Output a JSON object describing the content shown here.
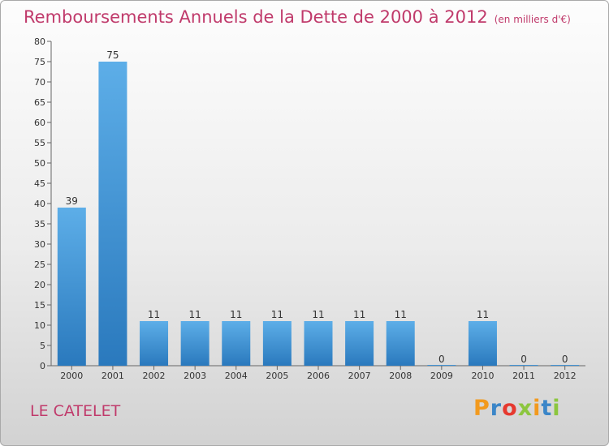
{
  "header": {
    "title": "Remboursements Annuels de la Dette de 2000 à 2012",
    "unit": "(en milliers d'€)"
  },
  "footer": {
    "place": "LE CATELET",
    "brand": "Proxiti"
  },
  "colors": {
    "title": "#c03a6b",
    "bar_top": "#5daee8",
    "bar_bottom": "#2a79bd"
  },
  "chart_data": {
    "type": "bar",
    "categories": [
      "2000",
      "2001",
      "2002",
      "2003",
      "2004",
      "2005",
      "2006",
      "2007",
      "2008",
      "2009",
      "2010",
      "2011",
      "2012"
    ],
    "values": [
      39,
      75,
      11,
      11,
      11,
      11,
      11,
      11,
      11,
      0,
      11,
      0,
      0
    ],
    "ylim": [
      0,
      80
    ],
    "yticks": [
      0,
      5,
      10,
      15,
      20,
      25,
      30,
      35,
      40,
      45,
      50,
      55,
      60,
      65,
      70,
      75,
      80
    ],
    "grid": false,
    "legend": "none"
  }
}
